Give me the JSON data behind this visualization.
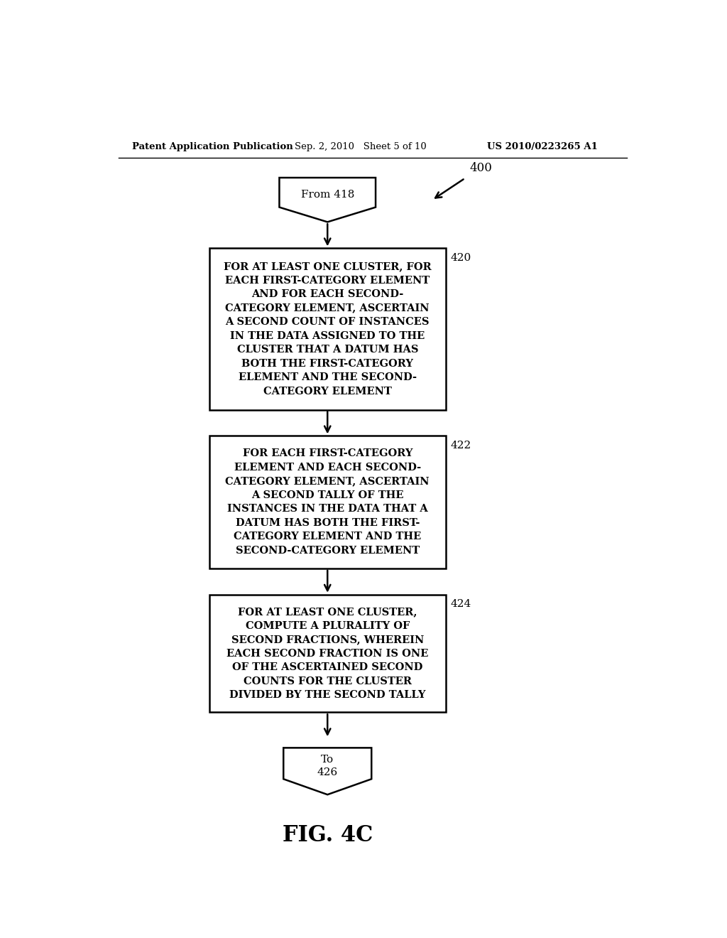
{
  "bg_color": "#ffffff",
  "header_left": "Patent Application Publication",
  "header_mid": "Sep. 2, 2010   Sheet 5 of 10",
  "header_right": "US 2010/0223265 A1",
  "fig_label": "FIG. 4C",
  "flow_ref": "400",
  "top_shape_text": "From 418",
  "box1_text": "FOR AT LEAST ONE CLUSTER, FOR\nEACH FIRST-CATEGORY ELEMENT\nAND FOR EACH SECOND-\nCATEGORY ELEMENT, ASCERTAIN\nA SECOND COUNT OF INSTANCES\nIN THE DATA ASSIGNED TO THE\nCLUSTER THAT A DATUM HAS\nBOTH THE FIRST-CATEGORY\nELEMENT AND THE SECOND-\nCATEGORY ELEMENT",
  "box1_label": "420",
  "box2_text": "FOR EACH FIRST-CATEGORY\nELEMENT AND EACH SECOND-\nCATEGORY ELEMENT, ASCERTAIN\nA SECOND TALLY OF THE\nINSTANCES IN THE DATA THAT A\nDATUM HAS BOTH THE FIRST-\nCATEGORY ELEMENT AND THE\nSECOND-CATEGORY ELEMENT",
  "box2_label": "422",
  "box3_text": "FOR AT LEAST ONE CLUSTER,\nCOMPUTE A PLURALITY OF\nSECOND FRACTIONS, WHEREIN\nEACH SECOND FRACTION IS ONE\nOF THE ASCERTAINED SECOND\nCOUNTS FOR THE CLUSTER\nDIVIDED BY THE SECOND TALLY",
  "box3_label": "424",
  "bottom_shape_text": "To\n426",
  "text_color": "#000000",
  "line_color": "#000000",
  "box_facecolor": "#ffffff"
}
